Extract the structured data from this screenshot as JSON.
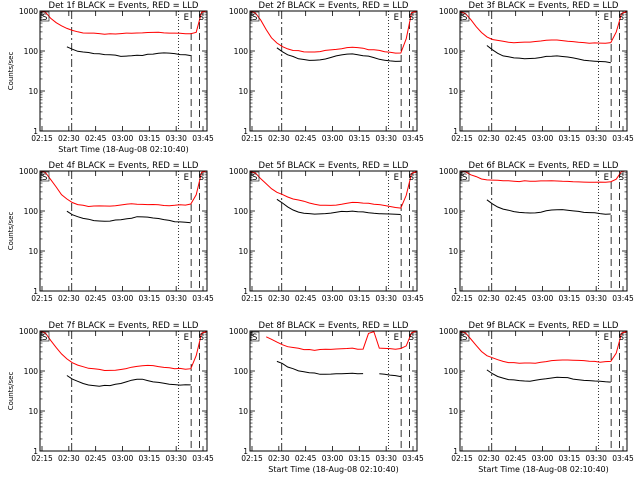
{
  "chart_data": [
    {
      "type": "line",
      "title": "Det 1f BLACK = Events, RED = LLD",
      "xlabel": "Start Time (18-Aug-08 02:10:40)",
      "ylabel": "Counts/sec",
      "x_ticks": [
        "02:15",
        "02:30",
        "02:45",
        "03:00",
        "03:15",
        "03:30",
        "03:45"
      ],
      "x_range_minutes": [
        0,
        40
      ],
      "y_log": true,
      "ylim": [
        1,
        1000
      ],
      "y_ticks": [
        "1",
        "10",
        "100",
        "1000"
      ],
      "markers": [
        {
          "label": "E",
          "pos": 28.8
        },
        {
          "label": "S",
          "pos": 30.8
        }
      ],
      "series": [
        {
          "color": "#ff0000",
          "values": [
            1000,
            900,
            650,
            500,
            420,
            360,
            320,
            300,
            290,
            285,
            280,
            275,
            272,
            270,
            268,
            268,
            270,
            272,
            275,
            280,
            282,
            285,
            288,
            290,
            290,
            288,
            285,
            282,
            280,
            300,
            900,
            1000
          ]
        },
        {
          "color": "#000000",
          "values": [
            null,
            null,
            null,
            null,
            null,
            130,
            115,
            100,
            92,
            88,
            85,
            82,
            80,
            78,
            76,
            75,
            75,
            76,
            78,
            80,
            83,
            86,
            88,
            88,
            86,
            83,
            80,
            78,
            75,
            null,
            null,
            null
          ]
        }
      ]
    },
    {
      "type": "line",
      "title": "Det 2f BLACK = Events, RED = LLD",
      "xlabel": "",
      "ylabel": "",
      "x_ticks": [
        "02:15",
        "02:30",
        "02:45",
        "03:00",
        "03:15",
        "03:30",
        "03:45"
      ],
      "x_range_minutes": [
        0,
        40
      ],
      "y_log": true,
      "ylim": [
        1,
        1000
      ],
      "y_ticks": [
        "1",
        "10",
        "100",
        "1000"
      ],
      "markers": [
        {
          "label": "E",
          "pos": 28.8
        },
        {
          "label": "S",
          "pos": 30.8
        }
      ],
      "series": [
        {
          "color": "#ff0000",
          "values": [
            1000,
            900,
            600,
            350,
            220,
            160,
            130,
            115,
            105,
            100,
            95,
            92,
            92,
            95,
            100,
            105,
            112,
            118,
            122,
            125,
            122,
            118,
            112,
            105,
            100,
            95,
            90,
            88,
            86,
            200,
            900,
            1000
          ]
        },
        {
          "color": "#000000",
          "values": [
            null,
            null,
            null,
            null,
            null,
            120,
            95,
            80,
            72,
            66,
            62,
            60,
            60,
            62,
            65,
            70,
            75,
            80,
            82,
            82,
            80,
            76,
            72,
            68,
            64,
            60,
            58,
            57,
            56,
            null,
            null,
            null
          ]
        }
      ]
    },
    {
      "type": "line",
      "title": "Det 3f BLACK = Events, RED = LLD",
      "xlabel": "",
      "ylabel": "",
      "x_ticks": [
        "02:15",
        "02:30",
        "02:45",
        "03:00",
        "03:15",
        "03:30",
        "03:45"
      ],
      "x_range_minutes": [
        0,
        40
      ],
      "y_log": true,
      "ylim": [
        1,
        1000
      ],
      "y_ticks": [
        "1",
        "10",
        "100",
        "1000"
      ],
      "markers": [
        {
          "label": "E",
          "pos": 28.8
        },
        {
          "label": "S",
          "pos": 30.8
        }
      ],
      "series": [
        {
          "color": "#ff0000",
          "values": [
            1000,
            900,
            600,
            400,
            280,
            220,
            190,
            180,
            172,
            168,
            165,
            165,
            168,
            172,
            175,
            180,
            185,
            185,
            182,
            178,
            172,
            168,
            165,
            162,
            160,
            160,
            160,
            162,
            165,
            300,
            900,
            1000
          ]
        },
        {
          "color": "#000000",
          "values": [
            null,
            null,
            null,
            null,
            null,
            140,
            110,
            90,
            78,
            70,
            66,
            64,
            63,
            63,
            65,
            68,
            72,
            76,
            78,
            76,
            72,
            68,
            64,
            60,
            56,
            54,
            53,
            52,
            50,
            null,
            null,
            null
          ]
        }
      ]
    },
    {
      "type": "line",
      "title": "Det 4f BLACK = Events, RED = LLD",
      "xlabel": "",
      "ylabel": "Counts/sec",
      "x_ticks": [
        "02:15",
        "02:30",
        "02:45",
        "03:00",
        "03:15",
        "03:30",
        "03:45"
      ],
      "x_range_minutes": [
        0,
        40
      ],
      "y_log": true,
      "ylim": [
        1,
        1000
      ],
      "y_ticks": [
        "1",
        "10",
        "100",
        "1000"
      ],
      "markers": [
        {
          "label": "E",
          "pos": 28.8
        },
        {
          "label": "S",
          "pos": 30.8
        }
      ],
      "series": [
        {
          "color": "#ff0000",
          "values": [
            1000,
            900,
            600,
            400,
            260,
            200,
            165,
            150,
            140,
            135,
            132,
            130,
            130,
            132,
            135,
            140,
            145,
            150,
            152,
            152,
            150,
            148,
            145,
            142,
            140,
            138,
            138,
            140,
            145,
            250,
            900,
            1000
          ]
        },
        {
          "color": "#000000",
          "values": [
            null,
            null,
            null,
            null,
            null,
            95,
            80,
            70,
            64,
            60,
            58,
            57,
            57,
            58,
            60,
            62,
            65,
            68,
            70,
            70,
            68,
            66,
            63,
            60,
            58,
            56,
            55,
            54,
            53,
            null,
            null,
            null
          ]
        }
      ]
    },
    {
      "type": "line",
      "title": "Det 5f BLACK = Events, RED = LLD",
      "xlabel": "",
      "ylabel": "",
      "x_ticks": [
        "02:15",
        "02:30",
        "02:45",
        "03:00",
        "03:15",
        "03:30",
        "03:45"
      ],
      "x_range_minutes": [
        0,
        40
      ],
      "y_log": true,
      "ylim": [
        1,
        1000
      ],
      "y_ticks": [
        "1",
        "10",
        "100",
        "1000"
      ],
      "markers": [
        {
          "label": "E",
          "pos": 28.8
        },
        {
          "label": "S",
          "pos": 30.8
        }
      ],
      "series": [
        {
          "color": "#ff0000",
          "values": [
            1000,
            900,
            650,
            480,
            360,
            290,
            250,
            220,
            200,
            185,
            172,
            160,
            150,
            145,
            142,
            142,
            145,
            150,
            155,
            158,
            158,
            155,
            150,
            145,
            140,
            135,
            130,
            125,
            120,
            250,
            900,
            1000
          ]
        },
        {
          "color": "#000000",
          "values": [
            null,
            null,
            null,
            null,
            null,
            200,
            160,
            130,
            110,
            98,
            90,
            85,
            82,
            82,
            84,
            88,
            92,
            96,
            100,
            100,
            98,
            95,
            92,
            90,
            88,
            86,
            84,
            82,
            80,
            null,
            null,
            null
          ]
        }
      ]
    },
    {
      "type": "line",
      "title": "Det 6f BLACK = Events, RED = LLD",
      "xlabel": "",
      "ylabel": "",
      "x_ticks": [
        "02:15",
        "02:30",
        "02:45",
        "03:00",
        "03:15",
        "03:30",
        "03:45"
      ],
      "x_range_minutes": [
        0,
        40
      ],
      "y_log": true,
      "ylim": [
        1,
        1000
      ],
      "y_ticks": [
        "1",
        "10",
        "100",
        "1000"
      ],
      "markers": [
        {
          "label": "E",
          "pos": 28.8
        },
        {
          "label": "S",
          "pos": 30.8
        }
      ],
      "series": [
        {
          "color": "#ff0000",
          "values": [
            1000,
            950,
            800,
            700,
            650,
            620,
            600,
            590,
            580,
            570,
            560,
            555,
            550,
            545,
            545,
            550,
            555,
            560,
            560,
            555,
            550,
            545,
            540,
            535,
            530,
            525,
            520,
            520,
            520,
            600,
            950,
            1000
          ]
        },
        {
          "color": "#000000",
          "values": [
            null,
            null,
            null,
            null,
            null,
            190,
            150,
            125,
            110,
            102,
            96,
            92,
            90,
            90,
            92,
            96,
            102,
            108,
            110,
            108,
            104,
            100,
            96,
            92,
            90,
            88,
            87,
            86,
            85,
            null,
            null,
            null
          ]
        }
      ]
    },
    {
      "type": "line",
      "title": "Det 7f BLACK = Events, RED = LLD",
      "xlabel": "",
      "ylabel": "Counts/sec",
      "x_ticks": [
        "02:15",
        "02:30",
        "02:45",
        "03:00",
        "03:15",
        "03:30",
        "03:45"
      ],
      "x_range_minutes": [
        0,
        40
      ],
      "y_log": true,
      "ylim": [
        1,
        1000
      ],
      "y_ticks": [
        "1",
        "10",
        "100",
        "1000"
      ],
      "markers": [
        {
          "label": "E",
          "pos": 28.8
        },
        {
          "label": "S",
          "pos": 30.8
        }
      ],
      "series": [
        {
          "color": "#ff0000",
          "values": [
            1000,
            900,
            600,
            400,
            270,
            200,
            160,
            140,
            125,
            115,
            110,
            106,
            104,
            104,
            106,
            110,
            118,
            125,
            132,
            135,
            135,
            132,
            128,
            122,
            118,
            114,
            112,
            112,
            115,
            250,
            900,
            1000
          ]
        },
        {
          "color": "#000000",
          "values": [
            null,
            null,
            null,
            null,
            null,
            78,
            65,
            56,
            50,
            46,
            44,
            42,
            42,
            43,
            45,
            48,
            52,
            57,
            60,
            60,
            58,
            55,
            52,
            50,
            48,
            46,
            45,
            44,
            44,
            null,
            null,
            null
          ]
        }
      ]
    },
    {
      "type": "line",
      "title": "Det 8f BLACK = Events, RED = LLD",
      "xlabel": "Start Time (18-Aug-08 02:10:40)",
      "ylabel": "",
      "x_ticks": [
        "02:15",
        "02:30",
        "02:45",
        "03:00",
        "03:15",
        "03:30",
        "03:45"
      ],
      "x_range_minutes": [
        0,
        40
      ],
      "y_log": true,
      "ylim": [
        1,
        1000
      ],
      "y_ticks": [
        "1",
        "10",
        "100",
        "1000"
      ],
      "markers": [
        {
          "label": "E",
          "pos": 28.8
        },
        {
          "label": "S",
          "pos": 30.8
        }
      ],
      "series": [
        {
          "color": "#ff0000",
          "values": [
            null,
            null,
            null,
            700,
            600,
            520,
            460,
            420,
            390,
            370,
            355,
            345,
            340,
            338,
            338,
            340,
            345,
            350,
            355,
            360,
            360,
            358,
            900,
            1000,
            380,
            370,
            365,
            362,
            360,
            420,
            900,
            1000
          ]
        },
        {
          "color": "#000000",
          "values": [
            null,
            null,
            null,
            null,
            null,
            180,
            150,
            125,
            110,
            100,
            94,
            90,
            88,
            86,
            85,
            85,
            86,
            88,
            90,
            90,
            88,
            86,
            null,
            null,
            82,
            80,
            78,
            76,
            75,
            null,
            null,
            null
          ]
        }
      ]
    },
    {
      "type": "line",
      "title": "Det 9f BLACK = Events, RED = LLD",
      "xlabel": "Start Time (18-Aug-08 02:10:40)",
      "ylabel": "",
      "x_ticks": [
        "02:15",
        "02:30",
        "02:45",
        "03:00",
        "03:15",
        "03:30",
        "03:45"
      ],
      "x_range_minutes": [
        0,
        40
      ],
      "y_log": true,
      "ylim": [
        1,
        1000
      ],
      "y_ticks": [
        "1",
        "10",
        "100",
        "1000"
      ],
      "markers": [
        {
          "label": "E",
          "pos": 28.8
        },
        {
          "label": "S",
          "pos": 30.8
        }
      ],
      "series": [
        {
          "color": "#ff0000",
          "values": [
            1000,
            900,
            650,
            450,
            320,
            250,
            210,
            185,
            170,
            162,
            158,
            155,
            155,
            158,
            162,
            168,
            175,
            182,
            188,
            190,
            188,
            185,
            180,
            175,
            170,
            168,
            166,
            166,
            168,
            280,
            900,
            1000
          ]
        },
        {
          "color": "#000000",
          "values": [
            null,
            null,
            null,
            null,
            null,
            105,
            88,
            76,
            68,
            63,
            60,
            58,
            57,
            57,
            58,
            60,
            63,
            66,
            68,
            68,
            66,
            64,
            62,
            60,
            58,
            57,
            56,
            55,
            55,
            null,
            null,
            null
          ]
        }
      ]
    }
  ]
}
